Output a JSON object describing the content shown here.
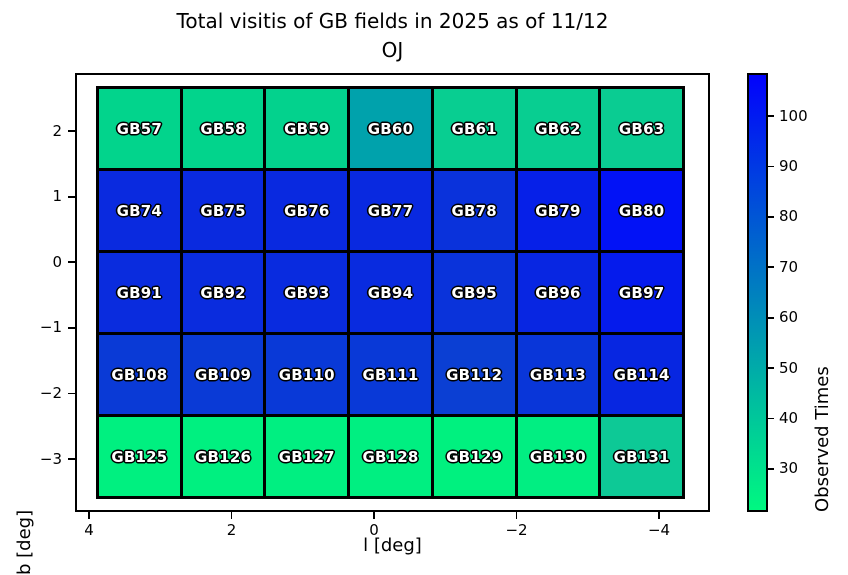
{
  "title": {
    "line1": "Total visitis of GB fields in 2025 as of 11/12",
    "line2": "OJ"
  },
  "axes": {
    "xlabel": "l [deg]",
    "ylabel": "b [deg]",
    "xtick_labels": [
      "4",
      "2",
      "0",
      "−2",
      "−4"
    ],
    "ytick_labels": [
      "2",
      "1",
      "0",
      "−1",
      "−2",
      "−3"
    ]
  },
  "colorbar": {
    "label": "Observed Times",
    "tick_labels": [
      "100",
      "90",
      "80",
      "70",
      "60",
      "50",
      "40",
      "30"
    ],
    "top_color": "#0202FC",
    "bottom_color": "#00F881"
  },
  "chart_data": {
    "type": "heatmap",
    "title": "Total visitis of GB fields in 2025 as of 11/12 OJ",
    "xlabel": "l [deg]",
    "ylabel": "b [deg]",
    "colorbar_label": "Observed Times",
    "x_axis_inverted": true,
    "xticks": [
      4,
      2,
      0,
      -2,
      -4
    ],
    "yticks": [
      2,
      1,
      0,
      -1,
      -2,
      -3
    ],
    "colorbar_ticks": [
      100,
      90,
      80,
      70,
      60,
      50,
      40,
      30
    ],
    "colorbar_range_estimate": [
      22,
      109
    ],
    "colormap": "green-to-blue (winter reversed)",
    "grid_shape": {
      "rows": 5,
      "cols": 7
    },
    "rows": [
      {
        "cells": [
          {
            "label": "GB57",
            "value_estimate": 37,
            "color": "#02D48C"
          },
          {
            "label": "GB58",
            "value_estimate": 37,
            "color": "#02D48C"
          },
          {
            "label": "GB59",
            "value_estimate": 38,
            "color": "#03D28D"
          },
          {
            "label": "GB60",
            "value_estimate": 54,
            "color": "#00A2AC"
          },
          {
            "label": "GB61",
            "value_estimate": 39,
            "color": "#08CE91"
          },
          {
            "label": "GB62",
            "value_estimate": 39,
            "color": "#08CE91"
          },
          {
            "label": "GB63",
            "value_estimate": 40,
            "color": "#0ACC92"
          }
        ]
      },
      {
        "cells": [
          {
            "label": "GB74",
            "value_estimate": 95,
            "color": "#0A2ADF"
          },
          {
            "label": "GB75",
            "value_estimate": 95,
            "color": "#0A2ADF"
          },
          {
            "label": "GB76",
            "value_estimate": 95,
            "color": "#0929E0"
          },
          {
            "label": "GB77",
            "value_estimate": 95,
            "color": "#0929E0"
          },
          {
            "label": "GB78",
            "value_estimate": 93,
            "color": "#0A32DB"
          },
          {
            "label": "GB79",
            "value_estimate": 97,
            "color": "#0620E8"
          },
          {
            "label": "GB80",
            "value_estimate": 102,
            "color": "#0212F6"
          }
        ]
      },
      {
        "cells": [
          {
            "label": "GB91",
            "value_estimate": 94,
            "color": "#0A2CDE"
          },
          {
            "label": "GB92",
            "value_estimate": 94,
            "color": "#0A2CDE"
          },
          {
            "label": "GB93",
            "value_estimate": 95,
            "color": "#092BDF"
          },
          {
            "label": "GB94",
            "value_estimate": 95,
            "color": "#092BDF"
          },
          {
            "label": "GB95",
            "value_estimate": 92,
            "color": "#0A33DA"
          },
          {
            "label": "GB96",
            "value_estimate": 96,
            "color": "#0826E2"
          },
          {
            "label": "GB97",
            "value_estimate": 98,
            "color": "#051BEC"
          }
        ]
      },
      {
        "cells": [
          {
            "label": "GB108",
            "value_estimate": 89,
            "color": "#0A3AD6"
          },
          {
            "label": "GB109",
            "value_estimate": 89,
            "color": "#0A3AD6"
          },
          {
            "label": "GB110",
            "value_estimate": 89,
            "color": "#0939D7"
          },
          {
            "label": "GB111",
            "value_estimate": 89,
            "color": "#0939D7"
          },
          {
            "label": "GB112",
            "value_estimate": 87,
            "color": "#0B3FD3"
          },
          {
            "label": "GB113",
            "value_estimate": 90,
            "color": "#0936D9"
          },
          {
            "label": "GB114",
            "value_estimate": 96,
            "color": "#0726E1"
          }
        ]
      },
      {
        "cells": [
          {
            "label": "GB125",
            "value_estimate": 27,
            "color": "#00F080"
          },
          {
            "label": "GB126",
            "value_estimate": 27,
            "color": "#00F080"
          },
          {
            "label": "GB127",
            "value_estimate": 27,
            "color": "#00EF81"
          },
          {
            "label": "GB128",
            "value_estimate": 27,
            "color": "#00EF81"
          },
          {
            "label": "GB129",
            "value_estimate": 26,
            "color": "#00F17F"
          },
          {
            "label": "GB130",
            "value_estimate": 28,
            "color": "#01EE82"
          },
          {
            "label": "GB131",
            "value_estimate": 40,
            "color": "#0DC996"
          }
        ]
      }
    ]
  }
}
